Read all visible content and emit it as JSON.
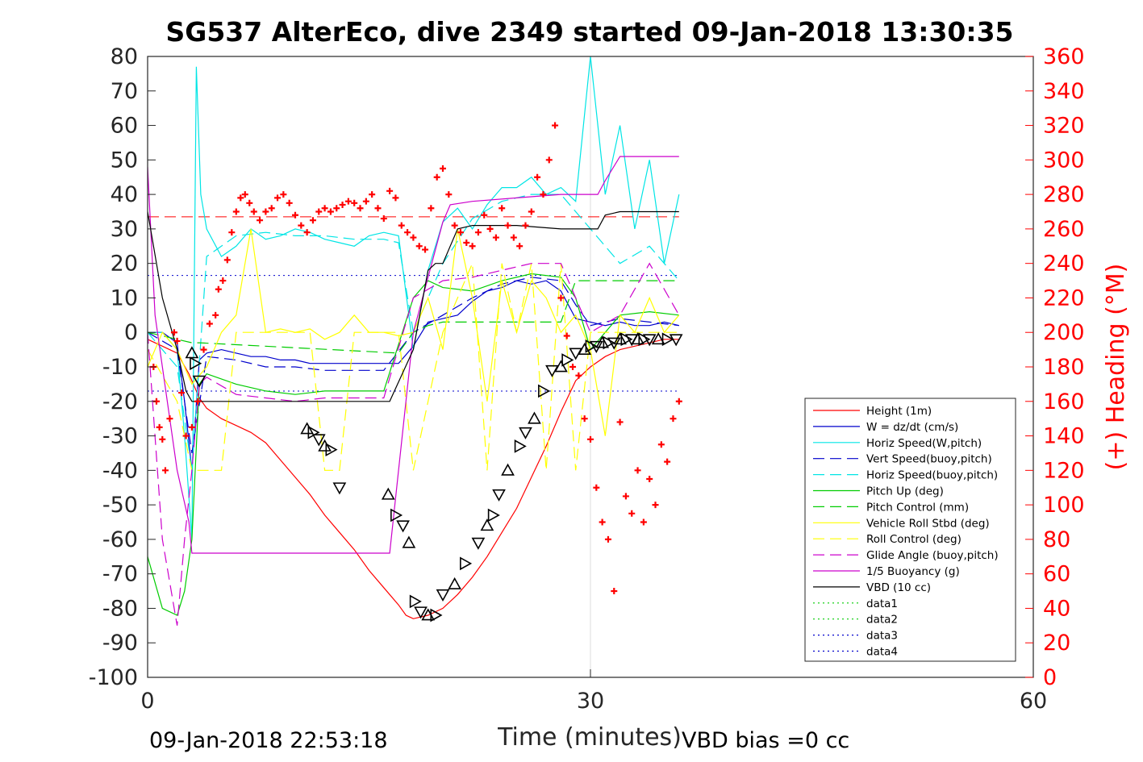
{
  "chart_data": {
    "type": "line",
    "title": "SG537 AlterEco, dive 2349 started 09-Jan-2018 13:30:35",
    "xlabel": "Time (minutes)",
    "ylabel_right": "(+) Heading (°M)",
    "xlim": [
      0,
      60
    ],
    "ylim": [
      -100,
      80
    ],
    "ylim_right": [
      0,
      360
    ],
    "x_ticks": [
      "0",
      "30",
      "60"
    ],
    "y_ticks": [
      "80",
      "70",
      "60",
      "50",
      "40",
      "30",
      "20",
      "10",
      "0",
      "-10",
      "-20",
      "-30",
      "-40",
      "-50",
      "-60",
      "-70",
      "-80",
      "-90",
      "-100"
    ],
    "y_ticks_right": [
      "360",
      "340",
      "320",
      "300",
      "280",
      "260",
      "240",
      "220",
      "200",
      "180",
      "160",
      "140",
      "120",
      "100",
      "80",
      "60",
      "40",
      "20",
      "0"
    ],
    "grid": "x-only at 30",
    "legend_position": "bottom-right",
    "footer_left": "09-Jan-2018 22:53:18",
    "footer_right": "VBD bias =0 cc",
    "series": [
      {
        "name": "Height (1m)",
        "color": "#ff0000",
        "style": "solid",
        "x": [
          0,
          1,
          2,
          2.8,
          3.5,
          4,
          5,
          6,
          7,
          8,
          9,
          10,
          11,
          12,
          13,
          14,
          15,
          16,
          17,
          17.5,
          18,
          19,
          20,
          21,
          22,
          23,
          24,
          25,
          26,
          27,
          28,
          29,
          30,
          31,
          32,
          33,
          34,
          35,
          36
        ],
        "y": [
          -2,
          -4,
          -6,
          -12,
          -19,
          -22,
          -25,
          -27,
          -29,
          -32,
          -37,
          -42,
          -47,
          -53,
          -58,
          -63,
          -69,
          -74,
          -79,
          -82,
          -83,
          -82,
          -80,
          -76,
          -71,
          -65,
          -58,
          -51,
          -42,
          -33,
          -23,
          -14,
          -10,
          -7,
          -5,
          -4,
          -3,
          -2,
          -2
        ]
      },
      {
        "name": "W = dz/dt (cm/s)",
        "color": "#0000cc",
        "style": "solid",
        "x": [
          0,
          1,
          2,
          2.5,
          3,
          3.5,
          4,
          5,
          6,
          7,
          8,
          9,
          10,
          11,
          12,
          13,
          14,
          15,
          16,
          17,
          18,
          19,
          20,
          21,
          22,
          23,
          24,
          25,
          26,
          27,
          28,
          29,
          30,
          31,
          32,
          33,
          34,
          35,
          36
        ],
        "y": [
          0,
          0,
          -3,
          -20,
          -40,
          -8,
          -6,
          -5,
          -6,
          -7,
          -7,
          -8,
          -8,
          -9,
          -9,
          -9,
          -9,
          -9,
          -9,
          -9,
          -4,
          3,
          4,
          5,
          9,
          12,
          13,
          15,
          14,
          15,
          12,
          4,
          3,
          2,
          3,
          2,
          2,
          3,
          2
        ]
      },
      {
        "name": "Horiz Speed(W,pitch)",
        "color": "#00e5e5",
        "style": "solid",
        "x": [
          0,
          1,
          2,
          2.5,
          3,
          3.3,
          3.6,
          4,
          5,
          6,
          7,
          8,
          9,
          10,
          11,
          12,
          13,
          14,
          15,
          16,
          17,
          18,
          19,
          20,
          21,
          22,
          23,
          24,
          25,
          26,
          27,
          28,
          29,
          30,
          31,
          32,
          33,
          34,
          35,
          36
        ],
        "y": [
          0,
          0,
          -5,
          -30,
          -60,
          77,
          40,
          30,
          22,
          25,
          30,
          27,
          28,
          30,
          29,
          27,
          26,
          25,
          28,
          29,
          28,
          -5,
          18,
          32,
          36,
          30,
          37,
          42,
          42,
          45,
          40,
          42,
          38,
          80,
          40,
          60,
          30,
          50,
          20,
          40
        ]
      },
      {
        "name": "Vert Speed(buoy,pitch)",
        "color": "#0000cc",
        "style": "dash",
        "x": [
          0,
          2,
          3,
          4,
          6,
          8,
          10,
          12,
          14,
          16,
          18,
          20,
          22,
          24,
          26,
          28,
          29,
          30,
          32,
          34,
          36
        ],
        "y": [
          0,
          -5,
          -35,
          -7,
          -8,
          -10,
          -10,
          -11,
          -11,
          -11,
          0,
          5,
          10,
          14,
          16,
          15,
          8,
          2,
          4,
          3,
          2
        ]
      },
      {
        "name": "Horiz Speed(buoy,pitch)",
        "color": "#00e5e5",
        "style": "dash",
        "x": [
          0,
          2,
          3,
          4,
          6,
          8,
          10,
          12,
          14,
          16,
          17,
          18,
          20,
          22,
          24,
          26,
          28,
          30,
          32,
          34,
          36
        ],
        "y": [
          0,
          -10,
          -40,
          22,
          28,
          29,
          28,
          28,
          27,
          27,
          26,
          0,
          20,
          33,
          38,
          40,
          40,
          30,
          20,
          25,
          15
        ]
      },
      {
        "name": "Pitch Up (deg)",
        "color": "#00cc00",
        "style": "solid",
        "x": [
          0,
          1,
          2,
          2.5,
          3,
          3.5,
          4,
          6,
          8,
          10,
          12,
          14,
          16,
          18,
          19,
          20,
          22,
          24,
          26,
          28,
          29,
          30,
          32,
          34,
          36
        ],
        "y": [
          -65,
          -80,
          -82,
          -75,
          -60,
          -15,
          -12,
          -15,
          -17,
          -18,
          -17,
          -17,
          -17,
          10,
          15,
          13,
          12,
          15,
          17,
          16,
          10,
          -5,
          5,
          6,
          5
        ]
      },
      {
        "name": "Pitch Control (mm)",
        "color": "#00cc00",
        "style": "dash",
        "x": [
          0,
          3,
          3.5,
          17,
          18,
          19,
          20,
          28,
          29,
          36
        ],
        "y": [
          0,
          -3,
          -3,
          -6,
          0,
          2,
          3,
          3,
          15,
          15
        ]
      },
      {
        "name": "Vehicle Roll Stbd (deg)",
        "color": "#ffff00",
        "style": "solid",
        "x": [
          0,
          1,
          2,
          3,
          4,
          5,
          6,
          7,
          8,
          9,
          10,
          11,
          12,
          13,
          14,
          15,
          16,
          17,
          18,
          19,
          20,
          21,
          22,
          23,
          24,
          25,
          26,
          27,
          28,
          29,
          30,
          31,
          32,
          33,
          34,
          35,
          36
        ],
        "y": [
          -10,
          0,
          -5,
          -15,
          -10,
          0,
          5,
          30,
          0,
          1,
          0,
          1,
          -2,
          0,
          5,
          0,
          0,
          -1,
          0,
          10,
          -5,
          30,
          10,
          -20,
          15,
          0,
          15,
          10,
          0,
          5,
          -5,
          -30,
          5,
          0,
          10,
          0,
          5
        ]
      },
      {
        "name": "Roll Control (deg)",
        "color": "#ffff00",
        "style": "dash",
        "x": [
          0,
          2,
          3,
          5,
          6,
          7,
          8,
          9,
          10,
          11,
          12,
          13,
          14,
          15,
          16,
          17,
          18,
          20,
          22,
          23,
          24,
          25,
          26,
          27,
          28,
          29,
          30,
          32,
          34,
          36
        ],
        "y": [
          -5,
          -20,
          -40,
          -40,
          0,
          0,
          0,
          0,
          0,
          0,
          -40,
          -40,
          0,
          0,
          0,
          0,
          -40,
          0,
          20,
          -40,
          20,
          0,
          20,
          -40,
          20,
          -40,
          0,
          0,
          0,
          0
        ]
      },
      {
        "name": "Glide Angle (buoy,pitch)",
        "color": "#cc00cc",
        "style": "dash",
        "x": [
          0,
          1,
          2,
          2.5,
          3,
          3.5,
          4,
          6,
          8,
          10,
          12,
          14,
          16,
          18,
          20,
          22,
          24,
          26,
          28,
          29,
          30,
          32,
          34,
          36
        ],
        "y": [
          0,
          -60,
          -85,
          -60,
          -40,
          -15,
          -13,
          -18,
          -19,
          -20,
          -19,
          -19,
          -19,
          10,
          15,
          16,
          18,
          20,
          20,
          10,
          0,
          5,
          20,
          5
        ]
      },
      {
        "name": "1/5 Buoyancy (g)",
        "color": "#cc00cc",
        "style": "solid",
        "x": [
          0,
          0.5,
          1,
          2,
          2.8,
          3,
          16.4,
          18,
          20,
          20.5,
          22,
          25,
          28,
          30,
          30.2,
          30.5,
          31,
          32,
          36
        ],
        "y": [
          48,
          5,
          -10,
          -40,
          -55,
          -64,
          -64,
          0,
          32,
          37,
          38,
          39,
          40,
          40,
          40,
          40,
          44,
          51,
          51
        ]
      },
      {
        "name": "VBD (10 cc)",
        "color": "#000000",
        "style": "solid",
        "x": [
          0,
          1,
          2,
          2.6,
          3,
          16.4,
          18,
          19,
          19.5,
          20,
          21,
          22,
          25,
          28,
          30,
          30.5,
          31,
          32,
          36
        ],
        "y": [
          35,
          10,
          -5,
          -17,
          -20,
          -20,
          -5,
          18,
          20,
          20,
          30,
          31,
          31,
          30,
          30,
          30,
          34,
          35,
          35
        ]
      },
      {
        "name": "data1",
        "color": "#00cc00",
        "style": "dot",
        "x": [],
        "y": []
      },
      {
        "name": "data2",
        "color": "#00cc00",
        "style": "dot",
        "x": [],
        "y": []
      },
      {
        "name": "data3",
        "color": "#0000cc",
        "style": "dot",
        "x": [],
        "y": []
      },
      {
        "name": "data4",
        "color": "#0000cc",
        "style": "dot",
        "x": [],
        "y": []
      }
    ],
    "reference_lines": [
      {
        "color": "#ff0000",
        "style": "dash",
        "y": 33.5,
        "x": [
          0,
          36
        ]
      },
      {
        "color": "#0000cc",
        "style": "dot",
        "y": 16.5,
        "x": [
          0,
          36
        ]
      },
      {
        "color": "#0000cc",
        "style": "dot",
        "y": -17,
        "x": [
          0,
          36
        ]
      }
    ],
    "heading_points": {
      "name": "(+) Heading",
      "color": "#ff0000",
      "x": [
        0.4,
        0.6,
        0.8,
        1.0,
        1.2,
        1.5,
        1.8,
        2.0,
        2.3,
        2.6,
        3.0,
        3.4,
        3.8,
        4.2,
        4.6,
        4.8,
        5.1,
        5.4,
        5.7,
        6.0,
        6.3,
        6.6,
        6.9,
        7.2,
        7.6,
        8.0,
        8.4,
        8.8,
        9.2,
        9.6,
        10.0,
        10.4,
        10.8,
        11.2,
        11.6,
        12.0,
        12.4,
        12.8,
        13.2,
        13.6,
        14.0,
        14.4,
        14.8,
        15.2,
        15.6,
        16.0,
        16.4,
        16.8,
        17.2,
        17.6,
        18.0,
        18.4,
        18.8,
        19.2,
        19.6,
        20.0,
        20.4,
        20.8,
        21.2,
        21.6,
        22.0,
        22.4,
        22.8,
        23.2,
        23.6,
        24.0,
        24.4,
        24.8,
        25.2,
        25.6,
        26.0,
        26.4,
        26.8,
        27.2,
        27.6,
        28.0,
        28.4,
        28.8,
        29.2,
        29.6,
        30.0,
        30.4,
        30.8,
        31.2,
        31.6,
        32.0,
        32.4,
        32.8,
        33.2,
        33.6,
        34.0,
        34.4,
        34.8,
        35.2,
        35.6,
        36.0
      ],
      "y": [
        180,
        160,
        145,
        138,
        120,
        150,
        200,
        195,
        165,
        140,
        145,
        160,
        190,
        205,
        210,
        225,
        230,
        242,
        258,
        270,
        278,
        280,
        275,
        270,
        265,
        270,
        272,
        278,
        280,
        275,
        268,
        262,
        258,
        265,
        270,
        272,
        270,
        272,
        274,
        276,
        275,
        272,
        276,
        280,
        272,
        266,
        282,
        278,
        262,
        258,
        255,
        250,
        248,
        272,
        290,
        295,
        280,
        262,
        258,
        252,
        250,
        258,
        268,
        260,
        255,
        272,
        262,
        255,
        250,
        262,
        270,
        290,
        280,
        300,
        320,
        220,
        198,
        180,
        175,
        150,
        138,
        110,
        90,
        80,
        50,
        148,
        105,
        95,
        120,
        90,
        115,
        100,
        135,
        125,
        150,
        160
      ]
    },
    "dive_markers": {
      "name": "markers",
      "color": "#000000",
      "x": [
        3.0,
        3.2,
        3.5,
        10.8,
        11.2,
        11.6,
        12.0,
        12.4,
        13.0,
        16.3,
        16.8,
        17.3,
        17.7,
        18.1,
        18.5,
        19.0,
        19.5,
        20.0,
        20.8,
        21.5,
        22.4,
        23.0,
        23.4,
        23.8,
        24.4,
        25.2,
        25.6,
        26.2,
        26.8,
        27.4,
        28.0,
        28.4,
        29.0,
        29.6,
        30.0,
        30.4,
        30.8,
        31.2,
        31.6,
        32.0,
        32.4,
        32.8,
        33.2,
        33.6,
        34.0,
        34.6,
        35.2,
        35.8
      ],
      "y": [
        -6,
        -9,
        -14,
        -28,
        -29,
        -31,
        -33,
        -34,
        -45,
        -47,
        -53,
        -56,
        -61,
        -78,
        -81,
        -82,
        -82,
        -76,
        -73,
        -67,
        -61,
        -56,
        -53,
        -47,
        -40,
        -33,
        -29,
        -25,
        -17,
        -11,
        -10,
        -8,
        -6,
        -5,
        -4,
        -4,
        -3,
        -3,
        -3,
        -2,
        -2,
        -2,
        -2,
        -2,
        -2,
        -2,
        -2,
        -2
      ]
    }
  }
}
